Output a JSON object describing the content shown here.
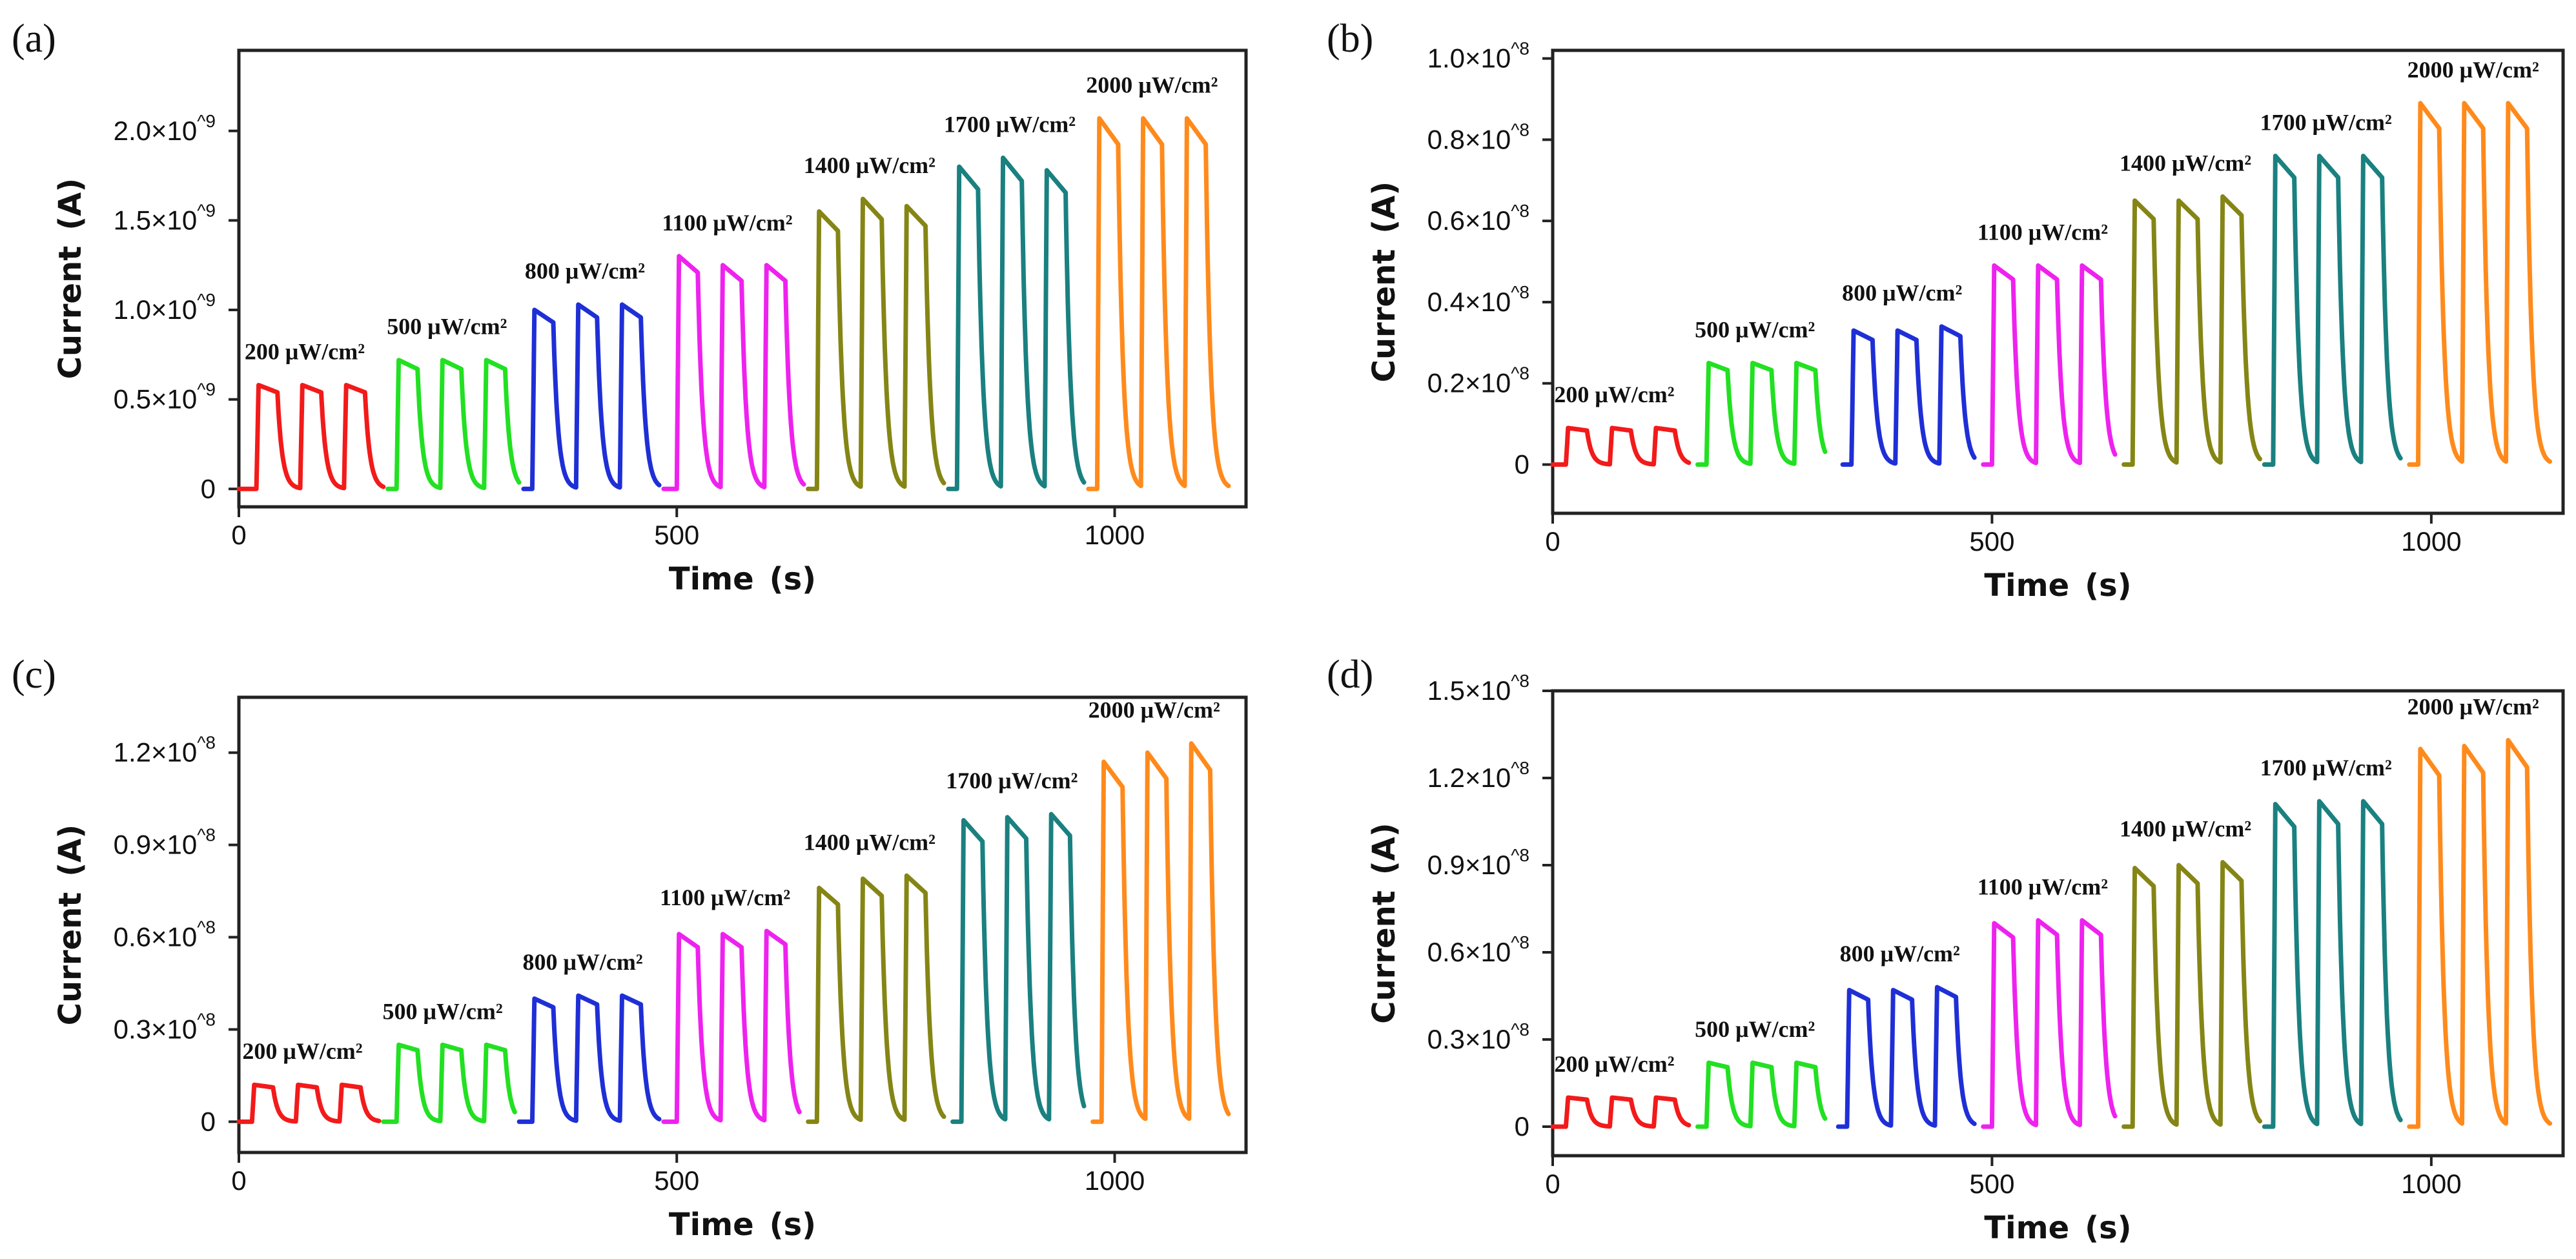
{
  "colors": {
    "200": "#f21a1a",
    "500": "#22e022",
    "800": "#1f2fd6",
    "1100": "#ee22ee",
    "1400": "#858516",
    "1700": "#1a8080",
    "2000": "#ff8a1c",
    "axis": "#222222"
  },
  "chart_data": [
    {
      "panel": "(a)",
      "type": "line",
      "xlabel": "Time (s)",
      "ylabel": "Current (A)",
      "xlim": [
        0,
        1150
      ],
      "ylim": [
        -0.1,
        2.45
      ],
      "x_ticks": [
        0,
        500,
        1000
      ],
      "x_tick_labels": [
        "0",
        "500",
        "1000"
      ],
      "y_ticks": [
        0,
        0.5,
        1.0,
        1.5,
        2.0
      ],
      "y_tick_labels": [
        "0",
        "0.5×10^9",
        "1.0×10^9",
        "1.5×10^9",
        "2.0×10^9"
      ],
      "baseline": 0.0,
      "series": [
        {
          "name": "200 μW/cm²",
          "color_key": "200",
          "start": 0,
          "end": 165,
          "pulse_on": [
            20,
            70,
            120
          ],
          "peaks": [
            0.58,
            0.58,
            0.58
          ]
        },
        {
          "name": "500 μW/cm²",
          "color_key": "500",
          "start": 170,
          "end": 320,
          "pulse_on": [
            180,
            230,
            280
          ],
          "peaks": [
            0.72,
            0.72,
            0.72
          ]
        },
        {
          "name": "800 μW/cm²",
          "color_key": "800",
          "start": 325,
          "end": 480,
          "pulse_on": [
            335,
            385,
            435
          ],
          "peaks": [
            1.0,
            1.03,
            1.03
          ]
        },
        {
          "name": "1100 μW/cm²",
          "color_key": "1100",
          "start": 485,
          "end": 645,
          "pulse_on": [
            500,
            550,
            600
          ],
          "peaks": [
            1.3,
            1.25,
            1.25
          ]
        },
        {
          "name": "1400 μW/cm²",
          "color_key": "1400",
          "start": 650,
          "end": 805,
          "pulse_on": [
            660,
            710,
            760
          ],
          "peaks": [
            1.55,
            1.62,
            1.58
          ]
        },
        {
          "name": "1700 μW/cm²",
          "color_key": "1700",
          "start": 810,
          "end": 965,
          "pulse_on": [
            820,
            870,
            920
          ],
          "peaks": [
            1.8,
            1.85,
            1.78
          ]
        },
        {
          "name": "2000 μW/cm²",
          "color_key": "2000",
          "start": 970,
          "end": 1130,
          "pulse_on": [
            980,
            1030,
            1080
          ],
          "peaks": [
            2.07,
            2.07,
            2.07
          ]
        }
      ]
    },
    {
      "panel": "(b)",
      "type": "line",
      "xlabel": "Time (s)",
      "ylabel": "Current (A)",
      "xlim": [
        0,
        1150
      ],
      "ylim": [
        -0.12,
        1.02
      ],
      "x_ticks": [
        0,
        500,
        1000
      ],
      "x_tick_labels": [
        "0",
        "500",
        "1000"
      ],
      "y_ticks": [
        0,
        0.2,
        0.4,
        0.6,
        0.8,
        1.0
      ],
      "y_tick_labels": [
        "0",
        "0.2×10^8",
        "0.4×10^8",
        "0.6×10^8",
        "0.8×10^8",
        "1.0×10^8"
      ],
      "baseline": 0.0,
      "series": [
        {
          "name": "200 μW/cm²",
          "color_key": "200",
          "start": 0,
          "end": 155,
          "pulse_on": [
            15,
            65,
            115
          ],
          "peaks": [
            0.09,
            0.09,
            0.09
          ]
        },
        {
          "name": "500 μW/cm²",
          "color_key": "500",
          "start": 165,
          "end": 310,
          "pulse_on": [
            175,
            225,
            275
          ],
          "peaks": [
            0.25,
            0.25,
            0.25
          ]
        },
        {
          "name": "800 μW/cm²",
          "color_key": "800",
          "start": 330,
          "end": 480,
          "pulse_on": [
            340,
            390,
            440
          ],
          "peaks": [
            0.33,
            0.33,
            0.34
          ]
        },
        {
          "name": "1100 μW/cm²",
          "color_key": "1100",
          "start": 490,
          "end": 640,
          "pulse_on": [
            500,
            550,
            600
          ],
          "peaks": [
            0.49,
            0.49,
            0.49
          ]
        },
        {
          "name": "1400 μW/cm²",
          "color_key": "1400",
          "start": 650,
          "end": 805,
          "pulse_on": [
            660,
            710,
            760
          ],
          "peaks": [
            0.65,
            0.65,
            0.66
          ]
        },
        {
          "name": "1700 μW/cm²",
          "color_key": "1700",
          "start": 810,
          "end": 965,
          "pulse_on": [
            820,
            870,
            920
          ],
          "peaks": [
            0.76,
            0.76,
            0.76
          ]
        },
        {
          "name": "2000 μW/cm²",
          "color_key": "2000",
          "start": 975,
          "end": 1135,
          "pulse_on": [
            985,
            1035,
            1085
          ],
          "peaks": [
            0.89,
            0.89,
            0.89
          ]
        }
      ]
    },
    {
      "panel": "(c)",
      "type": "line",
      "xlabel": "Time (s)",
      "ylabel": "Current (A)",
      "xlim": [
        0,
        1150
      ],
      "ylim": [
        -0.1,
        1.38
      ],
      "x_ticks": [
        0,
        500,
        1000
      ],
      "x_tick_labels": [
        "0",
        "500",
        "1000"
      ],
      "y_ticks": [
        0,
        0.3,
        0.6,
        0.9,
        1.2
      ],
      "y_tick_labels": [
        "0",
        "0.3×10^8",
        "0.6×10^8",
        "0.9×10^8",
        "1.2×10^8"
      ],
      "baseline": 0.0,
      "series": [
        {
          "name": "200 μW/cm²",
          "color_key": "200",
          "start": 0,
          "end": 160,
          "pulse_on": [
            15,
            65,
            115
          ],
          "peaks": [
            0.12,
            0.12,
            0.12
          ]
        },
        {
          "name": "500 μW/cm²",
          "color_key": "500",
          "start": 165,
          "end": 315,
          "pulse_on": [
            180,
            230,
            280
          ],
          "peaks": [
            0.25,
            0.25,
            0.25
          ]
        },
        {
          "name": "800 μW/cm²",
          "color_key": "800",
          "start": 320,
          "end": 480,
          "pulse_on": [
            335,
            385,
            435
          ],
          "peaks": [
            0.4,
            0.41,
            0.41
          ]
        },
        {
          "name": "1100 μW/cm²",
          "color_key": "1100",
          "start": 485,
          "end": 640,
          "pulse_on": [
            500,
            550,
            600
          ],
          "peaks": [
            0.61,
            0.61,
            0.62
          ]
        },
        {
          "name": "1400 μW/cm²",
          "color_key": "1400",
          "start": 650,
          "end": 805,
          "pulse_on": [
            660,
            710,
            760
          ],
          "peaks": [
            0.76,
            0.79,
            0.8
          ]
        },
        {
          "name": "1700 μW/cm²",
          "color_key": "1700",
          "start": 815,
          "end": 965,
          "pulse_on": [
            825,
            875,
            925
          ],
          "peaks": [
            0.98,
            0.99,
            1.0
          ]
        },
        {
          "name": "2000 μW/cm²",
          "color_key": "2000",
          "start": 975,
          "end": 1130,
          "pulse_on": [
            985,
            1035,
            1085
          ],
          "peaks": [
            1.17,
            1.2,
            1.23
          ]
        }
      ]
    },
    {
      "panel": "(d)",
      "type": "line",
      "xlabel": "Time (s)",
      "ylabel": "Current (A)",
      "xlim": [
        0,
        1150
      ],
      "ylim": [
        -0.1,
        1.5
      ],
      "x_ticks": [
        0,
        500,
        1000
      ],
      "x_tick_labels": [
        "0",
        "500",
        "1000"
      ],
      "y_ticks": [
        0,
        0.3,
        0.6,
        0.9,
        1.2,
        1.5
      ],
      "y_tick_labels": [
        "0",
        "0.3×10^8",
        "0.6×10^8",
        "0.9×10^8",
        "1.2×10^8",
        "1.5×10^8"
      ],
      "baseline": 0.0,
      "series": [
        {
          "name": "200 μW/cm²",
          "color_key": "200",
          "start": 0,
          "end": 155,
          "pulse_on": [
            15,
            65,
            115
          ],
          "peaks": [
            0.1,
            0.1,
            0.1
          ]
        },
        {
          "name": "500 μW/cm²",
          "color_key": "500",
          "start": 165,
          "end": 310,
          "pulse_on": [
            175,
            225,
            275
          ],
          "peaks": [
            0.22,
            0.22,
            0.22
          ]
        },
        {
          "name": "800 μW/cm²",
          "color_key": "800",
          "start": 325,
          "end": 480,
          "pulse_on": [
            335,
            385,
            435
          ],
          "peaks": [
            0.47,
            0.47,
            0.48
          ]
        },
        {
          "name": "1100 μW/cm²",
          "color_key": "1100",
          "start": 490,
          "end": 640,
          "pulse_on": [
            500,
            550,
            600
          ],
          "peaks": [
            0.7,
            0.71,
            0.71
          ]
        },
        {
          "name": "1400 μW/cm²",
          "color_key": "1400",
          "start": 650,
          "end": 805,
          "pulse_on": [
            660,
            710,
            760
          ],
          "peaks": [
            0.89,
            0.9,
            0.91
          ]
        },
        {
          "name": "1700 μW/cm²",
          "color_key": "1700",
          "start": 810,
          "end": 965,
          "pulse_on": [
            820,
            870,
            920
          ],
          "peaks": [
            1.11,
            1.12,
            1.12
          ]
        },
        {
          "name": "2000 μW/cm²",
          "color_key": "2000",
          "start": 975,
          "end": 1135,
          "pulse_on": [
            985,
            1035,
            1085
          ],
          "peaks": [
            1.3,
            1.31,
            1.33
          ]
        }
      ]
    }
  ]
}
